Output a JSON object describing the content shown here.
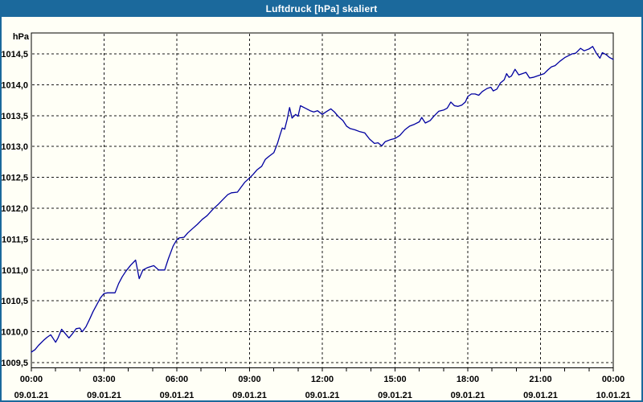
{
  "window": {
    "title": "Luftdruck [hPa] skaliert"
  },
  "colors": {
    "title_bar": "#1b699c",
    "window_border": "#1b699c",
    "background": "#fffff6",
    "line": "#0000a0",
    "grid": "#1a1a1a",
    "axis": "#000000",
    "text": "#000000",
    "title_text": "#ffffff"
  },
  "chart_data": {
    "type": "line",
    "title": "Luftdruck [hPa] skaliert",
    "ylabel": "hPa",
    "xlabel": "",
    "grid": "dashed",
    "legend_position": "none",
    "ylim": [
      1009.4,
      1014.9
    ],
    "xlim_hours": [
      0,
      24
    ],
    "y_unit_label": "hPa",
    "y_ticks": [
      {
        "v": 1014.5,
        "label": "1014,5"
      },
      {
        "v": 1014.0,
        "label": "1014,0"
      },
      {
        "v": 1013.5,
        "label": "1013,5"
      },
      {
        "v": 1013.0,
        "label": "1013,0"
      },
      {
        "v": 1012.5,
        "label": "1012,5"
      },
      {
        "v": 1012.0,
        "label": "1012,0"
      },
      {
        "v": 1011.5,
        "label": "1011,5"
      },
      {
        "v": 1011.0,
        "label": "1011,0"
      },
      {
        "v": 1010.5,
        "label": "1010,5"
      },
      {
        "v": 1010.0,
        "label": "1010,0"
      },
      {
        "v": 1009.5,
        "label": "1009,5"
      }
    ],
    "x_ticks": [
      {
        "h": 0,
        "time": "00:00",
        "date": "09.01.21"
      },
      {
        "h": 3,
        "time": "03:00",
        "date": "09.01.21"
      },
      {
        "h": 6,
        "time": "06:00",
        "date": "09.01.21"
      },
      {
        "h": 9,
        "time": "09:00",
        "date": "09.01.21"
      },
      {
        "h": 12,
        "time": "12:00",
        "date": "09.01.21"
      },
      {
        "h": 15,
        "time": "15:00",
        "date": "09.01.21"
      },
      {
        "h": 18,
        "time": "18:00",
        "date": "09.01.21"
      },
      {
        "h": 21,
        "time": "21:00",
        "date": "09.01.21"
      },
      {
        "h": 24,
        "time": "00:00",
        "date": "10.01.21"
      }
    ],
    "x_minor_tick_every_hours": 1,
    "series": [
      {
        "name": "Luftdruck",
        "color": "#0000a0",
        "points": [
          [
            0.0,
            1009.67
          ],
          [
            0.15,
            1009.71
          ],
          [
            0.3,
            1009.78
          ],
          [
            0.5,
            1009.86
          ],
          [
            0.65,
            1009.91
          ],
          [
            0.8,
            1009.95
          ],
          [
            1.0,
            1009.83
          ],
          [
            1.1,
            1009.9
          ],
          [
            1.25,
            1010.04
          ],
          [
            1.4,
            1009.97
          ],
          [
            1.55,
            1009.9
          ],
          [
            1.7,
            1009.97
          ],
          [
            1.85,
            1010.05
          ],
          [
            2.0,
            1010.06
          ],
          [
            2.1,
            1010.0
          ],
          [
            2.25,
            1010.08
          ],
          [
            2.4,
            1010.2
          ],
          [
            2.55,
            1010.33
          ],
          [
            2.7,
            1010.44
          ],
          [
            2.85,
            1010.55
          ],
          [
            3.0,
            1010.62
          ],
          [
            3.15,
            1010.63
          ],
          [
            3.45,
            1010.63
          ],
          [
            3.6,
            1010.78
          ],
          [
            3.75,
            1010.89
          ],
          [
            3.9,
            1010.98
          ],
          [
            4.1,
            1011.08
          ],
          [
            4.3,
            1011.16
          ],
          [
            4.45,
            1010.86
          ],
          [
            4.6,
            1011.0
          ],
          [
            4.8,
            1011.04
          ],
          [
            5.05,
            1011.07
          ],
          [
            5.25,
            1011.0
          ],
          [
            5.5,
            1011.0
          ],
          [
            5.65,
            1011.18
          ],
          [
            5.85,
            1011.39
          ],
          [
            6.0,
            1011.49
          ],
          [
            6.1,
            1011.52
          ],
          [
            6.3,
            1011.53
          ],
          [
            6.45,
            1011.6
          ],
          [
            6.65,
            1011.67
          ],
          [
            6.85,
            1011.74
          ],
          [
            7.05,
            1011.82
          ],
          [
            7.25,
            1011.88
          ],
          [
            7.5,
            1011.99
          ],
          [
            7.7,
            1012.06
          ],
          [
            7.9,
            1012.14
          ],
          [
            8.1,
            1012.22
          ],
          [
            8.25,
            1012.25
          ],
          [
            8.5,
            1012.26
          ],
          [
            8.65,
            1012.34
          ],
          [
            8.8,
            1012.42
          ],
          [
            9.0,
            1012.49
          ],
          [
            9.15,
            1012.55
          ],
          [
            9.3,
            1012.62
          ],
          [
            9.5,
            1012.68
          ],
          [
            9.65,
            1012.79
          ],
          [
            9.8,
            1012.84
          ],
          [
            10.0,
            1012.9
          ],
          [
            10.15,
            1013.05
          ],
          [
            10.25,
            1013.18
          ],
          [
            10.35,
            1013.3
          ],
          [
            10.45,
            1013.28
          ],
          [
            10.55,
            1013.44
          ],
          [
            10.65,
            1013.63
          ],
          [
            10.75,
            1013.46
          ],
          [
            10.9,
            1013.52
          ],
          [
            11.0,
            1013.49
          ],
          [
            11.1,
            1013.66
          ],
          [
            11.3,
            1013.62
          ],
          [
            11.5,
            1013.58
          ],
          [
            11.65,
            1013.56
          ],
          [
            11.8,
            1013.58
          ],
          [
            12.0,
            1013.52
          ],
          [
            12.15,
            1013.56
          ],
          [
            12.35,
            1013.61
          ],
          [
            12.5,
            1013.56
          ],
          [
            12.65,
            1013.49
          ],
          [
            12.85,
            1013.42
          ],
          [
            13.0,
            1013.33
          ],
          [
            13.15,
            1013.29
          ],
          [
            13.35,
            1013.27
          ],
          [
            13.55,
            1013.24
          ],
          [
            13.75,
            1013.22
          ],
          [
            13.95,
            1013.12
          ],
          [
            14.15,
            1013.05
          ],
          [
            14.3,
            1013.06
          ],
          [
            14.45,
            1013.01
          ],
          [
            14.6,
            1013.08
          ],
          [
            14.8,
            1013.11
          ],
          [
            15.0,
            1013.13
          ],
          [
            15.2,
            1013.18
          ],
          [
            15.4,
            1013.27
          ],
          [
            15.6,
            1013.33
          ],
          [
            15.8,
            1013.36
          ],
          [
            16.0,
            1013.4
          ],
          [
            16.1,
            1013.47
          ],
          [
            16.25,
            1013.38
          ],
          [
            16.45,
            1013.42
          ],
          [
            16.6,
            1013.49
          ],
          [
            16.8,
            1013.57
          ],
          [
            17.0,
            1013.59
          ],
          [
            17.15,
            1013.62
          ],
          [
            17.3,
            1013.72
          ],
          [
            17.45,
            1013.66
          ],
          [
            17.6,
            1013.65
          ],
          [
            17.75,
            1013.67
          ],
          [
            17.9,
            1013.72
          ],
          [
            18.0,
            1013.81
          ],
          [
            18.15,
            1013.85
          ],
          [
            18.3,
            1013.85
          ],
          [
            18.45,
            1013.83
          ],
          [
            18.6,
            1013.89
          ],
          [
            18.8,
            1013.94
          ],
          [
            18.95,
            1013.96
          ],
          [
            19.05,
            1013.9
          ],
          [
            19.2,
            1013.93
          ],
          [
            19.35,
            1014.03
          ],
          [
            19.5,
            1014.08
          ],
          [
            19.6,
            1014.18
          ],
          [
            19.7,
            1014.12
          ],
          [
            19.8,
            1014.14
          ],
          [
            19.95,
            1014.25
          ],
          [
            20.1,
            1014.16
          ],
          [
            20.25,
            1014.18
          ],
          [
            20.4,
            1014.2
          ],
          [
            20.55,
            1014.11
          ],
          [
            20.7,
            1014.12
          ],
          [
            20.85,
            1014.14
          ],
          [
            21.0,
            1014.16
          ],
          [
            21.15,
            1014.18
          ],
          [
            21.3,
            1014.24
          ],
          [
            21.45,
            1014.29
          ],
          [
            21.6,
            1014.31
          ],
          [
            21.8,
            1014.38
          ],
          [
            22.0,
            1014.44
          ],
          [
            22.15,
            1014.47
          ],
          [
            22.3,
            1014.5
          ],
          [
            22.45,
            1014.51
          ],
          [
            22.65,
            1014.59
          ],
          [
            22.8,
            1014.55
          ],
          [
            23.0,
            1014.58
          ],
          [
            23.15,
            1014.62
          ],
          [
            23.3,
            1014.51
          ],
          [
            23.45,
            1014.43
          ],
          [
            23.55,
            1014.52
          ],
          [
            23.7,
            1014.49
          ],
          [
            23.85,
            1014.44
          ],
          [
            24.0,
            1014.41
          ]
        ]
      }
    ]
  }
}
